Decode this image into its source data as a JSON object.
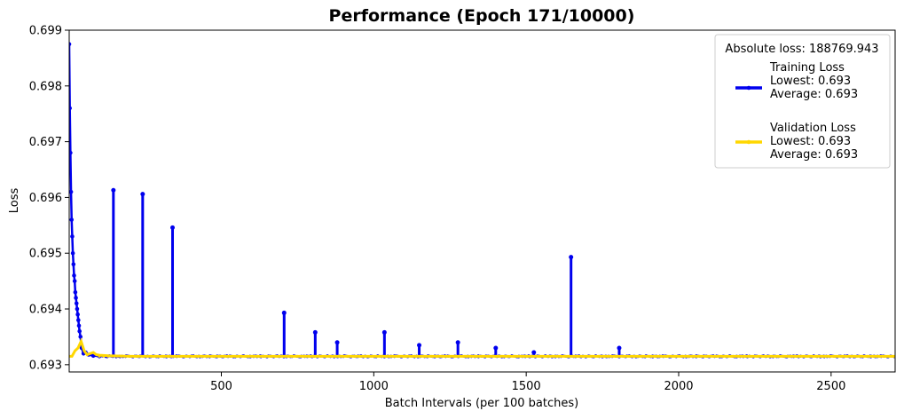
{
  "chart_data": {
    "type": "line",
    "title": "Performance (Epoch 171/10000)",
    "xlabel": "Batch Intervals (per 100 batches)",
    "ylabel": "Loss",
    "xlim": [
      1,
      2710
    ],
    "ylim": [
      0.69287,
      0.699
    ],
    "x_ticks": [
      500,
      1000,
      1500,
      2000,
      2500
    ],
    "y_ticks": [
      0.693,
      0.694,
      0.695,
      0.696,
      0.697,
      0.698,
      0.699
    ],
    "x_tick_labels": [
      "500",
      "1000",
      "1500",
      "2000",
      "2500"
    ],
    "y_tick_labels": [
      "0.693",
      "0.694",
      "0.695",
      "0.696",
      "0.697",
      "0.698",
      "0.699"
    ],
    "grid": false,
    "legend_position": "top-right",
    "legend": {
      "header": "Absolute loss: 188769.943",
      "entries": [
        {
          "name": "Training Loss",
          "line1": "Training Loss",
          "line2": "Lowest: 0.693",
          "line3": "Average: 0.693",
          "color": "#0000ee"
        },
        {
          "name": "Validation Loss",
          "line1": "Validation Loss",
          "line2": "Lowest: 0.693",
          "line3": "Average: 0.693",
          "color": "#ffd700"
        }
      ]
    },
    "series": [
      {
        "name": "Training Loss",
        "color": "#0000ee",
        "baseline": 0.69315,
        "x": [
          1,
          3,
          5,
          7,
          9,
          11,
          13,
          15,
          17,
          19,
          21,
          23,
          25,
          27,
          29,
          31,
          33,
          35,
          38,
          42,
          48,
          55,
          65,
          80
        ],
        "values": [
          0.69875,
          0.6976,
          0.6968,
          0.6961,
          0.6956,
          0.6953,
          0.695,
          0.6948,
          0.6946,
          0.6945,
          0.6943,
          0.6942,
          0.6941,
          0.694,
          0.6939,
          0.6938,
          0.6937,
          0.6936,
          0.6935,
          0.6933,
          0.6932,
          0.69322,
          0.69318,
          0.69316
        ],
        "spikes": [
          {
            "x": 146,
            "y": 0.69613
          },
          {
            "x": 242,
            "y": 0.69606
          },
          {
            "x": 340,
            "y": 0.69546
          },
          {
            "x": 706,
            "y": 0.69393
          },
          {
            "x": 808,
            "y": 0.69358
          },
          {
            "x": 880,
            "y": 0.6934
          },
          {
            "x": 1035,
            "y": 0.69358
          },
          {
            "x": 1149,
            "y": 0.69335
          },
          {
            "x": 1276,
            "y": 0.6934
          },
          {
            "x": 1400,
            "y": 0.6933
          },
          {
            "x": 1525,
            "y": 0.69322
          },
          {
            "x": 1647,
            "y": 0.69493
          },
          {
            "x": 1805,
            "y": 0.6933
          }
        ]
      },
      {
        "name": "Validation Loss",
        "color": "#ffd700",
        "x": [
          1,
          10,
          20,
          30,
          40,
          50,
          60,
          70,
          80,
          90,
          100,
          130,
          200,
          2710
        ],
        "values": [
          0.69315,
          0.69315,
          0.69325,
          0.6933,
          0.69342,
          0.69325,
          0.69318,
          0.6932,
          0.69322,
          0.69318,
          0.69317,
          0.69316,
          0.69315,
          0.69315
        ]
      }
    ]
  }
}
